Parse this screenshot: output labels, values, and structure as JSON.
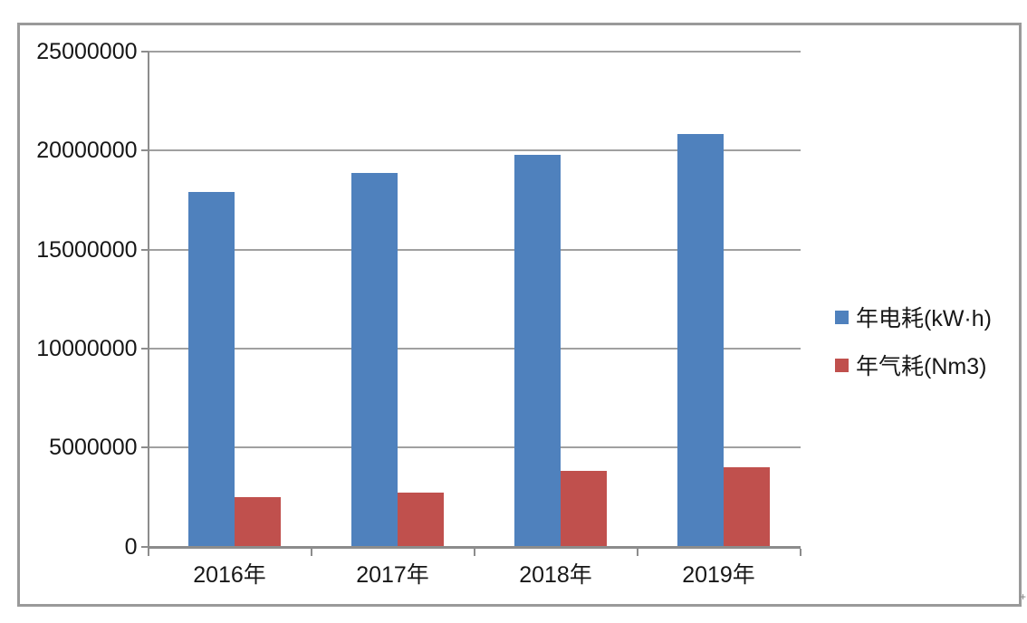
{
  "chart_data": {
    "type": "bar",
    "title": "",
    "xlabel": "",
    "ylabel": "",
    "categories": [
      "2016年",
      "2017年",
      "2018年",
      "2019年"
    ],
    "series": [
      {
        "name": "年电耗(kW·h)",
        "color": "#4F81BD",
        "values": [
          17900000,
          18850000,
          19800000,
          20850000
        ]
      },
      {
        "name": "年气耗(Nm3)",
        "color": "#C0504D",
        "values": [
          2500000,
          2700000,
          3800000,
          4000000
        ]
      }
    ],
    "ylim": [
      0,
      25000000
    ],
    "y_tick_interval": 5000000,
    "y_tick_labels": [
      "0",
      "5000000",
      "10000000",
      "15000000",
      "20000000",
      "25000000"
    ],
    "grid": true,
    "legend_position": "right"
  },
  "styles": {
    "bar_blue": "#4F81BD",
    "bar_red": "#C0504D",
    "gridline_color": "#a0a0a0",
    "axis_color": "#8c8c8c",
    "border_color": "#9a9a9a",
    "text_color": "#171717",
    "background": "#ffffff"
  }
}
